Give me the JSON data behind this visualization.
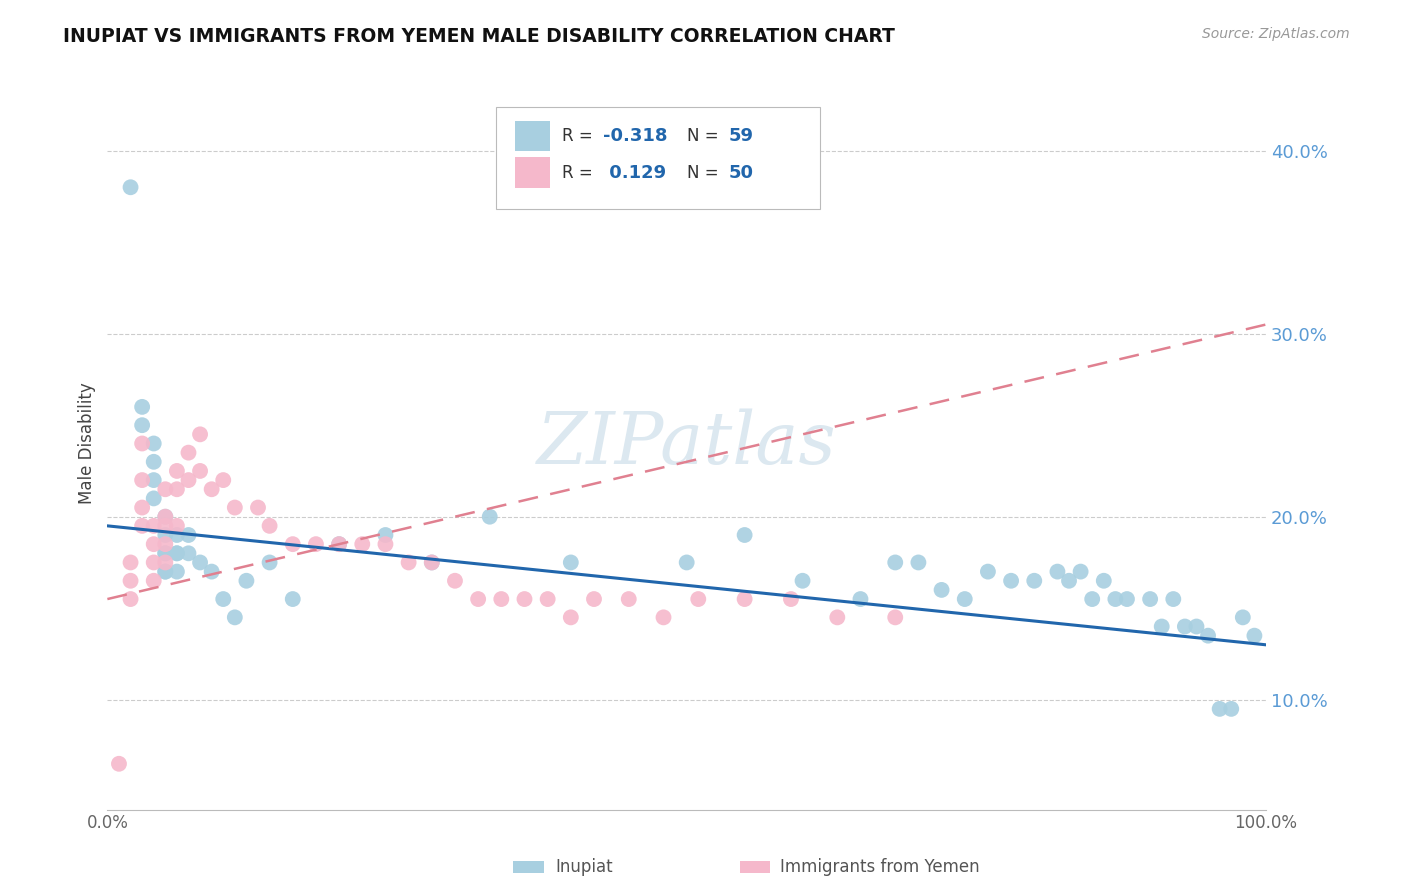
{
  "title": "INUPIAT VS IMMIGRANTS FROM YEMEN MALE DISABILITY CORRELATION CHART",
  "source": "Source: ZipAtlas.com",
  "ylabel": "Male Disability",
  "xlim": [
    0.0,
    1.0
  ],
  "ylim": [
    0.04,
    0.44
  ],
  "yticks": [
    0.1,
    0.2,
    0.3,
    0.4
  ],
  "ytick_labels": [
    "10.0%",
    "20.0%",
    "30.0%",
    "40.0%"
  ],
  "inupiat_color": "#a8cfe0",
  "yemen_color": "#f5b8cb",
  "inupiat_line_color": "#2166ac",
  "yemen_line_color": "#e08090",
  "watermark_color": "#dce8f0",
  "inupiat_x": [
    0.02,
    0.03,
    0.03,
    0.04,
    0.04,
    0.04,
    0.04,
    0.05,
    0.05,
    0.05,
    0.05,
    0.05,
    0.05,
    0.06,
    0.06,
    0.06,
    0.06,
    0.07,
    0.07,
    0.08,
    0.09,
    0.1,
    0.11,
    0.12,
    0.14,
    0.16,
    0.2,
    0.24,
    0.28,
    0.33,
    0.4,
    0.5,
    0.55,
    0.6,
    0.65,
    0.68,
    0.7,
    0.72,
    0.74,
    0.76,
    0.78,
    0.8,
    0.82,
    0.83,
    0.84,
    0.85,
    0.86,
    0.87,
    0.88,
    0.9,
    0.91,
    0.92,
    0.93,
    0.94,
    0.95,
    0.96,
    0.97,
    0.98,
    0.99
  ],
  "inupiat_y": [
    0.38,
    0.25,
    0.26,
    0.22,
    0.23,
    0.24,
    0.21,
    0.2,
    0.19,
    0.18,
    0.17,
    0.18,
    0.17,
    0.19,
    0.18,
    0.17,
    0.18,
    0.19,
    0.18,
    0.175,
    0.17,
    0.155,
    0.145,
    0.165,
    0.175,
    0.155,
    0.185,
    0.19,
    0.175,
    0.2,
    0.175,
    0.175,
    0.19,
    0.165,
    0.155,
    0.175,
    0.175,
    0.16,
    0.155,
    0.17,
    0.165,
    0.165,
    0.17,
    0.165,
    0.17,
    0.155,
    0.165,
    0.155,
    0.155,
    0.155,
    0.14,
    0.155,
    0.14,
    0.14,
    0.135,
    0.095,
    0.095,
    0.145,
    0.135
  ],
  "yemen_x": [
    0.01,
    0.02,
    0.02,
    0.02,
    0.03,
    0.03,
    0.03,
    0.03,
    0.04,
    0.04,
    0.04,
    0.04,
    0.05,
    0.05,
    0.05,
    0.05,
    0.05,
    0.06,
    0.06,
    0.06,
    0.07,
    0.07,
    0.08,
    0.08,
    0.09,
    0.1,
    0.11,
    0.13,
    0.14,
    0.16,
    0.18,
    0.2,
    0.22,
    0.24,
    0.26,
    0.28,
    0.3,
    0.32,
    0.34,
    0.36,
    0.38,
    0.4,
    0.42,
    0.45,
    0.48,
    0.51,
    0.55,
    0.59,
    0.63,
    0.68
  ],
  "yemen_y": [
    0.065,
    0.175,
    0.165,
    0.155,
    0.24,
    0.22,
    0.205,
    0.195,
    0.195,
    0.185,
    0.175,
    0.165,
    0.215,
    0.2,
    0.195,
    0.185,
    0.175,
    0.225,
    0.215,
    0.195,
    0.235,
    0.22,
    0.245,
    0.225,
    0.215,
    0.22,
    0.205,
    0.205,
    0.195,
    0.185,
    0.185,
    0.185,
    0.185,
    0.185,
    0.175,
    0.175,
    0.165,
    0.155,
    0.155,
    0.155,
    0.155,
    0.145,
    0.155,
    0.155,
    0.145,
    0.155,
    0.155,
    0.155,
    0.145,
    0.145
  ],
  "inupiat_trend": [
    0.195,
    0.13
  ],
  "yemen_trend": [
    0.155,
    0.305
  ]
}
